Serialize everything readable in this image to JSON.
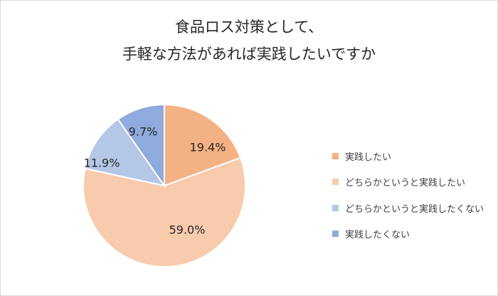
{
  "chart_data": {
    "type": "pie",
    "title_lines": [
      "食品ロス対策として、",
      "手軽な方法があれば実践したいですか"
    ],
    "slices": [
      {
        "name": "実践したい",
        "value": 19.4,
        "label": "19.4%",
        "color": "#f4b183"
      },
      {
        "name": "どちらかというと実践したい",
        "value": 59.0,
        "label": "59.0%",
        "color": "#f8cbad"
      },
      {
        "name": "どちらかというと実践したくない",
        "value": 11.9,
        "label": "11.9%",
        "color": "#b4c7e7"
      },
      {
        "name": "実践したくない",
        "value": 9.7,
        "label": "9.7%",
        "color": "#8faadc"
      }
    ],
    "start": "12 o'clock",
    "direction": "clockwise",
    "legend_position": "right"
  }
}
